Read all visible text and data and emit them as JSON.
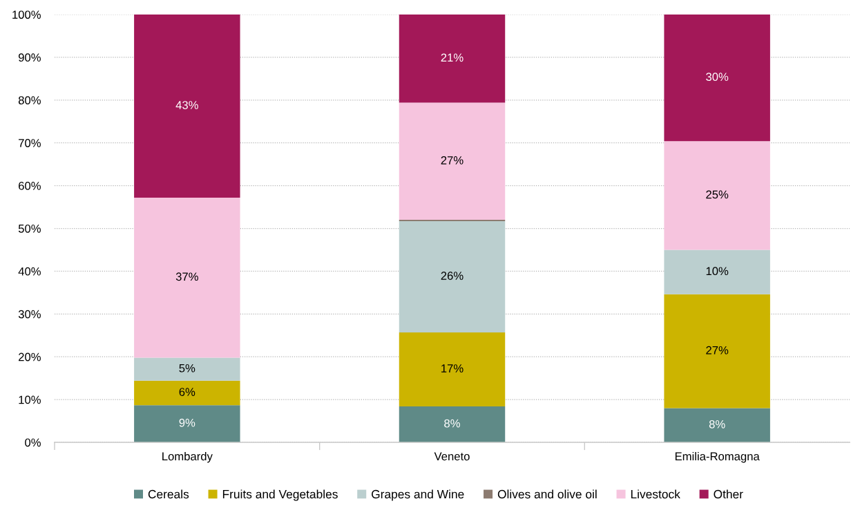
{
  "chart_data": {
    "type": "bar",
    "stacked": true,
    "categories": [
      "Lombardy",
      "Veneto",
      "Emilia-Romagna"
    ],
    "ylim": [
      0,
      100
    ],
    "yticks": [
      {
        "value": 0,
        "label": "0%"
      },
      {
        "value": 10,
        "label": "10%"
      },
      {
        "value": 20,
        "label": "20%"
      },
      {
        "value": 30,
        "label": "30%"
      },
      {
        "value": 40,
        "label": "40%"
      },
      {
        "value": 50,
        "label": "50%"
      },
      {
        "value": 60,
        "label": "60%"
      },
      {
        "value": 70,
        "label": "70%"
      },
      {
        "value": 80,
        "label": "80%"
      },
      {
        "value": 90,
        "label": "90%"
      },
      {
        "value": 100,
        "label": "100%"
      }
    ],
    "grid": "y",
    "legend": "bottom",
    "series": [
      {
        "name": "Cereals",
        "color": "#5f8a87",
        "values": [
          8.7,
          8.4,
          8.0
        ],
        "value_labels": [
          "9%",
          "8%",
          "8%"
        ]
      },
      {
        "name": "Fruits and Vegetables",
        "color": "#ccb400",
        "values": [
          5.7,
          17.3,
          26.6
        ],
        "value_labels": [
          "6%",
          "17%",
          "27%"
        ]
      },
      {
        "name": "Grapes and Wine",
        "color": "#bbcfcf",
        "values": [
          5.4,
          26.0,
          10.4
        ],
        "value_labels": [
          "5%",
          "26%",
          "10%"
        ]
      },
      {
        "name": "Olives and olive oil",
        "color": "#8c7b70",
        "values": [
          0,
          0.3,
          0
        ],
        "value_labels": [
          null,
          null,
          null
        ]
      },
      {
        "name": "Livestock",
        "color": "#f6c4de",
        "values": [
          37.4,
          27.4,
          25.4
        ],
        "value_labels": [
          "37%",
          "27%",
          "25%"
        ]
      },
      {
        "name": "Other",
        "color": "#a31858",
        "values": [
          42.8,
          20.6,
          29.6
        ],
        "value_labels": [
          "43%",
          "21%",
          "30%"
        ]
      }
    ]
  }
}
